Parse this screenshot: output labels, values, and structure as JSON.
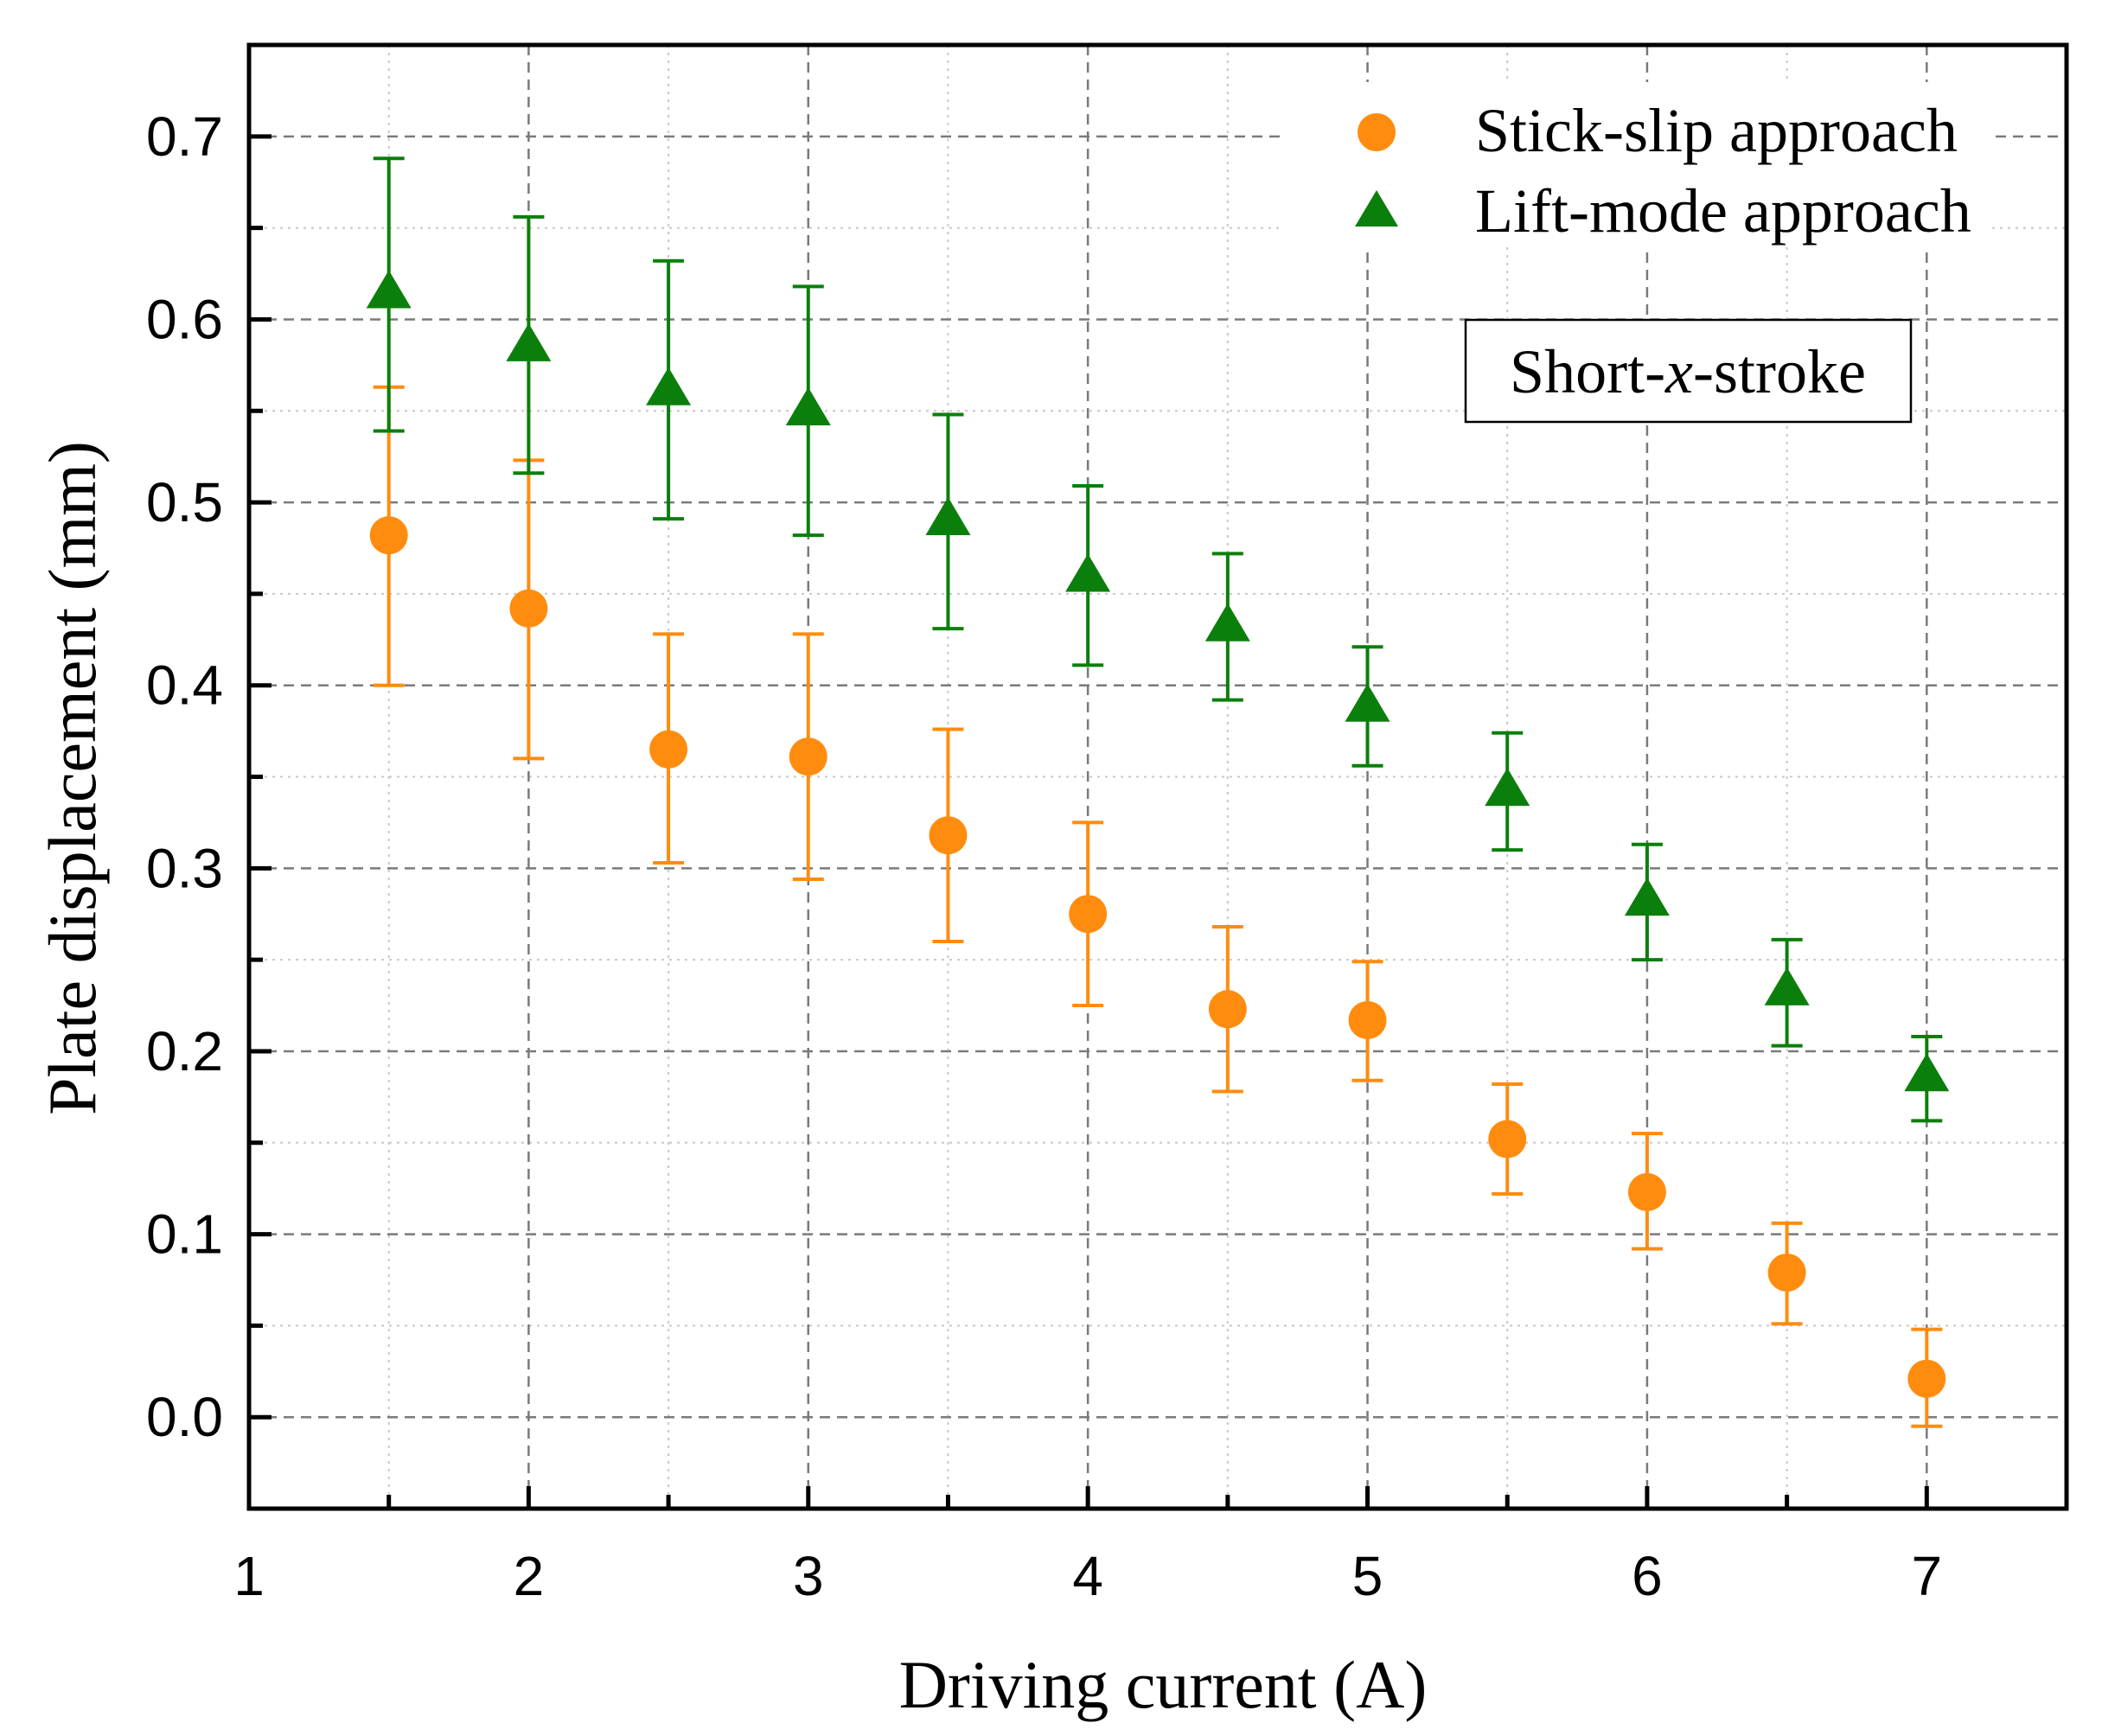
{
  "chart_data": {
    "type": "scatter",
    "title": "",
    "xlabel": "Driving current (A)",
    "ylabel": "Plate displacement (mm)",
    "xlim": [
      1,
      7.5
    ],
    "ylim": [
      -0.05,
      0.75
    ],
    "xticks": [
      1,
      2,
      3,
      4,
      5,
      6,
      7
    ],
    "xtick_labels": [
      "1",
      "2",
      "3",
      "4",
      "5",
      "6",
      "7"
    ],
    "yticks": [
      0.0,
      0.1,
      0.2,
      0.3,
      0.4,
      0.5,
      0.6,
      0.7
    ],
    "ytick_labels": [
      "0.0",
      "0.1",
      "0.2",
      "0.3",
      "0.4",
      "0.5",
      "0.6",
      "0.7"
    ],
    "grid": true,
    "legend_position": "top-right",
    "annotation": {
      "prefix": "Short-",
      "italic": "x",
      "suffix": "-stroke"
    },
    "series": [
      {
        "name": "Stick-slip approach",
        "marker": "circle",
        "color": "#ff8c0e",
        "x": [
          1.5,
          2,
          2.5,
          3,
          3.5,
          4,
          4.5,
          5,
          5.5,
          6,
          6.5,
          7
        ],
        "y": [
          0.482,
          0.442,
          0.365,
          0.361,
          0.318,
          0.275,
          0.223,
          0.217,
          0.152,
          0.123,
          0.079,
          0.021
        ],
        "y_err_upper": [
          0.563,
          0.523,
          0.428,
          0.428,
          0.376,
          0.325,
          0.268,
          0.249,
          0.182,
          0.155,
          0.106,
          0.048
        ],
        "y_err_lower": [
          0.4,
          0.36,
          0.303,
          0.294,
          0.26,
          0.225,
          0.178,
          0.184,
          0.122,
          0.092,
          0.051,
          -0.005
        ]
      },
      {
        "name": "Lift-mode approach",
        "marker": "triangle",
        "color": "#0b7f0b",
        "x": [
          1.5,
          2,
          2.5,
          3,
          3.5,
          4,
          4.5,
          5,
          5.5,
          6,
          6.5,
          7
        ],
        "y": [
          0.614,
          0.585,
          0.561,
          0.55,
          0.49,
          0.459,
          0.432,
          0.388,
          0.342,
          0.282,
          0.233,
          0.186
        ],
        "y_err_upper": [
          0.688,
          0.656,
          0.632,
          0.618,
          0.548,
          0.509,
          0.472,
          0.421,
          0.374,
          0.313,
          0.261,
          0.208
        ],
        "y_err_lower": [
          0.539,
          0.516,
          0.491,
          0.482,
          0.431,
          0.411,
          0.392,
          0.356,
          0.31,
          0.25,
          0.203,
          0.162
        ]
      }
    ]
  }
}
